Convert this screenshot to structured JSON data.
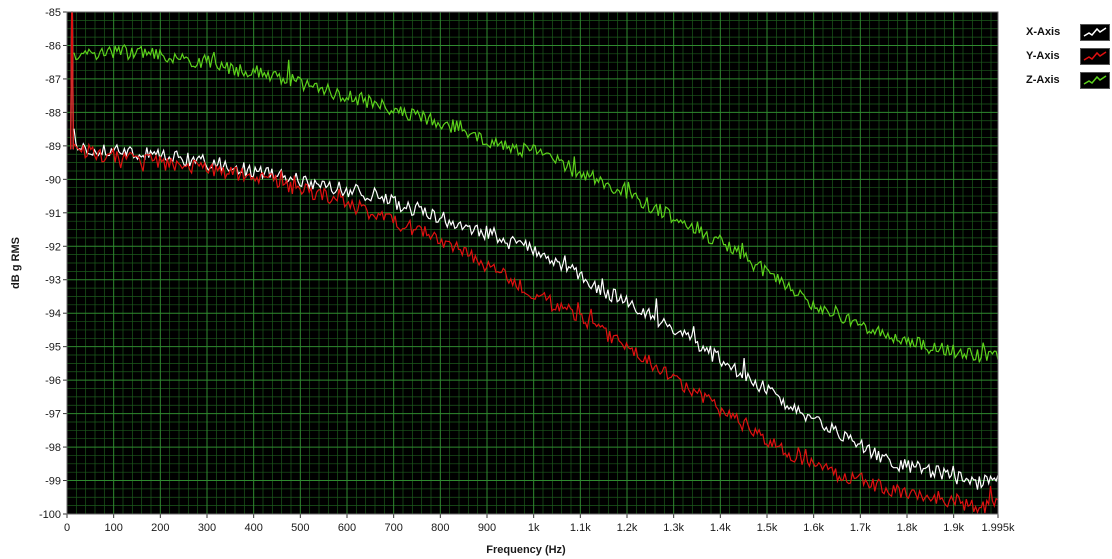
{
  "chart_data": {
    "type": "line",
    "ylabel": "dB g RMS",
    "xlabel": "Frequency (Hz)",
    "xlim": [
      0,
      1995
    ],
    "ylim": [
      -100,
      -85
    ],
    "x_ticks": [
      0,
      100,
      200,
      300,
      400,
      500,
      600,
      700,
      800,
      900,
      1000,
      1100,
      1200,
      1300,
      1400,
      1500,
      1600,
      1700,
      1800,
      1900,
      1995
    ],
    "x_tick_labels": [
      "0",
      "100",
      "200",
      "300",
      "400",
      "500",
      "600",
      "700",
      "800",
      "900",
      "1k",
      "1.1k",
      "1.2k",
      "1.3k",
      "1.4k",
      "1.5k",
      "1.6k",
      "1.7k",
      "1.8k",
      "1.9k",
      "1.995k"
    ],
    "y_ticks": [
      -85,
      -86,
      -87,
      -88,
      -89,
      -90,
      -91,
      -92,
      -93,
      -94,
      -95,
      -96,
      -97,
      -98,
      -99,
      -100
    ],
    "y_tick_labels": [
      "-85",
      "-86",
      "-87",
      "-88",
      "-89",
      "-90",
      "-91",
      "-92",
      "-93",
      "-94",
      "-95",
      "-96",
      "-97",
      "-98",
      "-99",
      "-100"
    ],
    "grid": true,
    "legend_position": "top-right",
    "dc_spike": {
      "x": 10,
      "peak": -85
    },
    "series": [
      {
        "name": "X-Axis",
        "color": "#ffffff",
        "x": [
          15,
          50,
          100,
          150,
          200,
          250,
          300,
          350,
          400,
          450,
          500,
          550,
          600,
          650,
          700,
          750,
          800,
          850,
          900,
          950,
          1000,
          1050,
          1100,
          1150,
          1200,
          1250,
          1300,
          1350,
          1400,
          1450,
          1500,
          1550,
          1600,
          1650,
          1700,
          1750,
          1800,
          1850,
          1900,
          1950,
          1995
        ],
        "values": [
          -89.1,
          -89.1,
          -89.1,
          -89.2,
          -89.3,
          -89.4,
          -89.5,
          -89.6,
          -89.8,
          -89.9,
          -90.0,
          -90.2,
          -90.3,
          -90.5,
          -90.7,
          -90.9,
          -91.1,
          -91.4,
          -91.6,
          -91.9,
          -92.1,
          -92.5,
          -92.9,
          -93.3,
          -93.7,
          -94.1,
          -94.5,
          -94.9,
          -95.4,
          -95.8,
          -96.3,
          -96.8,
          -97.2,
          -97.6,
          -98.0,
          -98.3,
          -98.6,
          -98.7,
          -98.9,
          -99.1,
          -99.0
        ]
      },
      {
        "name": "Y-Axis",
        "color": "#e01010",
        "x": [
          15,
          50,
          100,
          150,
          200,
          250,
          300,
          350,
          400,
          450,
          500,
          550,
          600,
          650,
          700,
          750,
          800,
          850,
          900,
          950,
          1000,
          1050,
          1100,
          1150,
          1200,
          1250,
          1300,
          1350,
          1400,
          1450,
          1500,
          1550,
          1600,
          1650,
          1700,
          1750,
          1800,
          1850,
          1900,
          1950,
          1995
        ],
        "values": [
          -89.1,
          -89.2,
          -89.3,
          -89.4,
          -89.5,
          -89.6,
          -89.7,
          -89.8,
          -89.9,
          -90.1,
          -90.3,
          -90.5,
          -90.7,
          -91.0,
          -91.3,
          -91.5,
          -91.8,
          -92.2,
          -92.6,
          -93.0,
          -93.4,
          -93.8,
          -94.2,
          -94.6,
          -95.0,
          -95.5,
          -96.0,
          -96.4,
          -96.9,
          -97.3,
          -97.8,
          -98.2,
          -98.5,
          -98.8,
          -99.0,
          -99.2,
          -99.4,
          -99.5,
          -99.6,
          -99.8,
          -99.7
        ]
      },
      {
        "name": "Z-Axis",
        "color": "#5cd21c",
        "x": [
          15,
          50,
          100,
          150,
          200,
          250,
          300,
          350,
          400,
          450,
          500,
          550,
          600,
          650,
          700,
          750,
          800,
          850,
          900,
          950,
          1000,
          1050,
          1100,
          1150,
          1200,
          1250,
          1300,
          1350,
          1400,
          1450,
          1500,
          1550,
          1600,
          1650,
          1700,
          1750,
          1800,
          1850,
          1900,
          1950,
          1995
        ],
        "values": [
          -86.4,
          -86.2,
          -86.2,
          -86.2,
          -86.3,
          -86.4,
          -86.5,
          -86.7,
          -86.8,
          -86.9,
          -87.1,
          -87.3,
          -87.5,
          -87.7,
          -87.9,
          -88.1,
          -88.3,
          -88.5,
          -88.8,
          -89.0,
          -89.2,
          -89.5,
          -89.8,
          -90.1,
          -90.4,
          -90.8,
          -91.1,
          -91.5,
          -91.9,
          -92.3,
          -92.8,
          -93.3,
          -93.7,
          -94.0,
          -94.3,
          -94.6,
          -94.8,
          -95.0,
          -95.1,
          -95.3,
          -95.2
        ]
      }
    ]
  }
}
